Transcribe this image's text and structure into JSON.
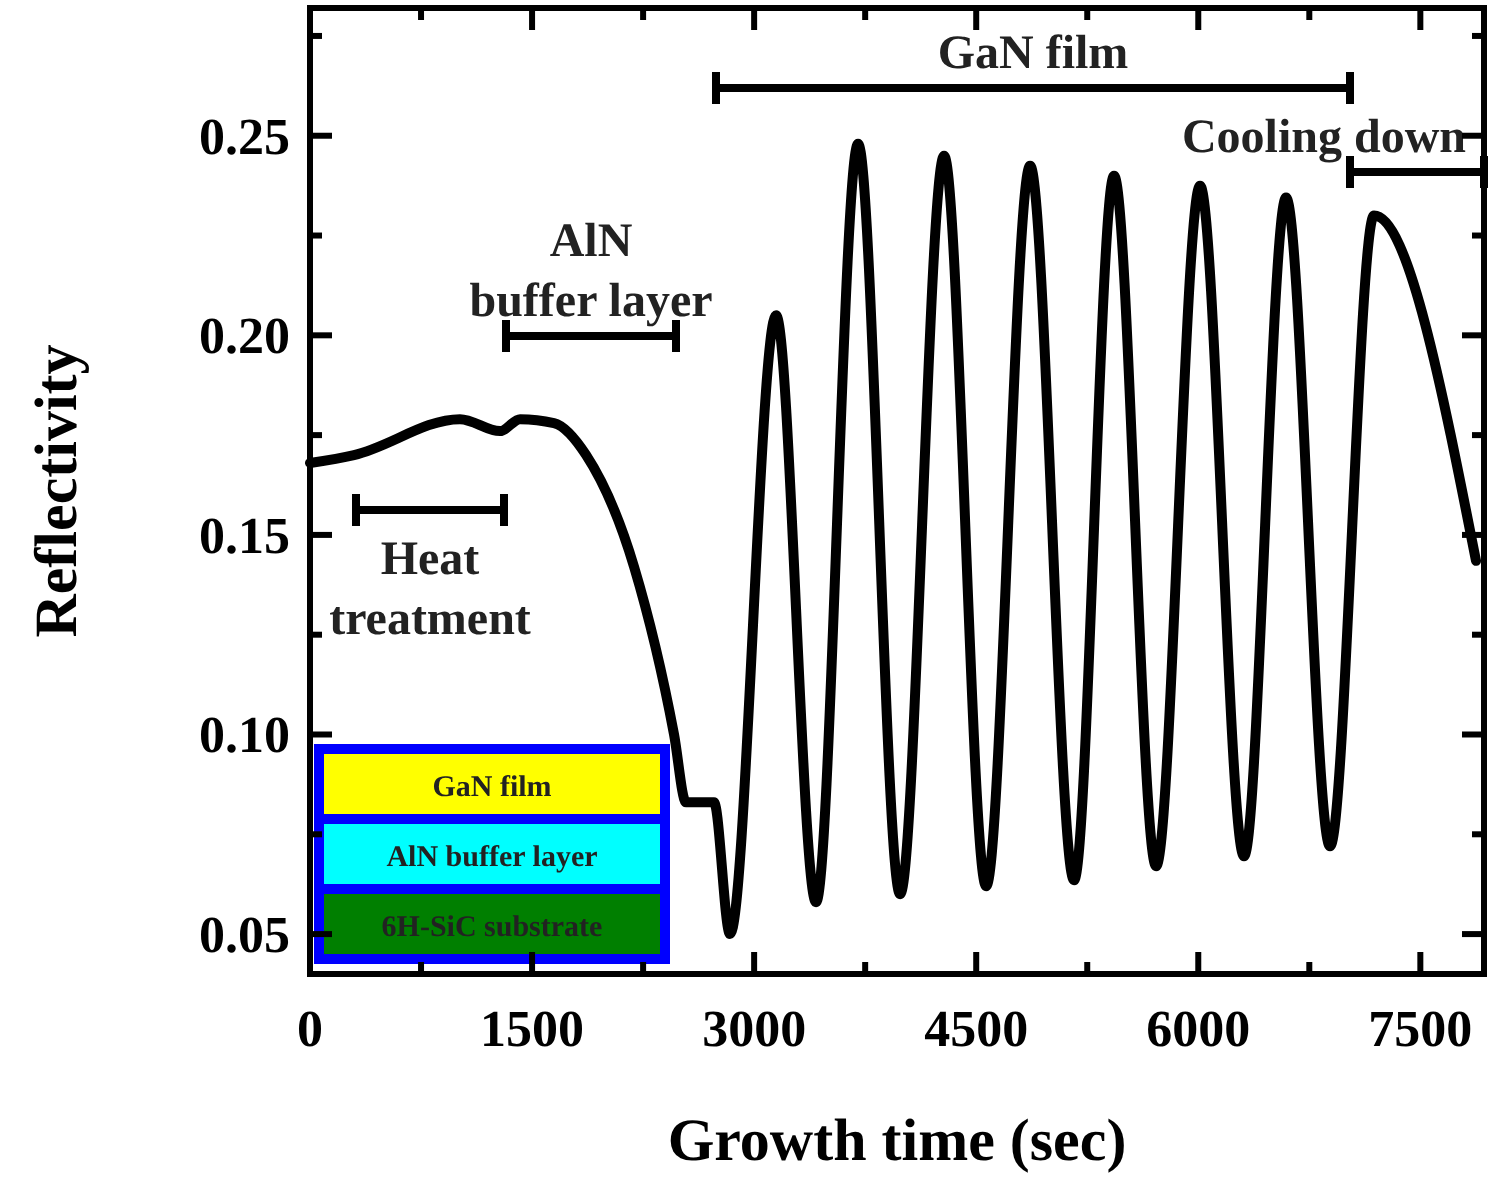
{
  "chart_data": {
    "type": "line",
    "xlabel": "Growth time (sec)",
    "ylabel": "Reflectivity",
    "xlim": [
      0,
      7930
    ],
    "ylim": [
      0.04,
      0.282
    ],
    "xticks": [
      0,
      {
        "value": 750,
        "label": null
      },
      1500,
      {
        "value": 2250,
        "label": null
      },
      3000,
      {
        "value": 3750,
        "label": null
      },
      4500,
      {
        "value": 5250,
        "label": null
      },
      6000,
      {
        "value": 6750,
        "label": null
      },
      7500
    ],
    "yticks": [
      0.05,
      {
        "value": 0.075,
        "label": null
      },
      {
        "value": 0.1,
        "label": "0.10"
      },
      {
        "value": 0.125,
        "label": null
      },
      0.15,
      {
        "value": 0.175,
        "label": null
      },
      {
        "value": 0.2,
        "label": "0.20"
      },
      {
        "value": 0.225,
        "label": null
      },
      0.25,
      {
        "value": 0.275,
        "label": null
      }
    ],
    "grid": false,
    "marker": "none",
    "line_style": "solid",
    "series": [
      {
        "color": "#000000",
        "x": [
          0,
          297,
          1013,
          1284,
          1419,
          1648,
          1865,
          2189,
          2459,
          2540,
          2729,
          2837,
          3148,
          3418,
          3702,
          3986,
          4283,
          4567,
          4864,
          5161,
          5431,
          5715,
          6012,
          6309,
          6593,
          6890,
          7187,
          7876
        ],
        "values": [
          0.168,
          0.17,
          0.179,
          0.176,
          0.179,
          0.178,
          0.17,
          0.142,
          0.1,
          0.083,
          0.083,
          0.05,
          0.205,
          0.058,
          0.248,
          0.06,
          0.245,
          0.062,
          0.2425,
          0.0635,
          0.24,
          0.067,
          0.2375,
          0.0695,
          0.2345,
          0.072,
          0.23,
          0.1435
        ]
      }
    ],
    "annotations": [
      "Heat\ntreatment",
      "AlN\nbuffer layer",
      "GaN film",
      "Cooling down",
      "GaN film",
      "AlN buffer layer",
      "6H-SiC substrate"
    ]
  }
}
